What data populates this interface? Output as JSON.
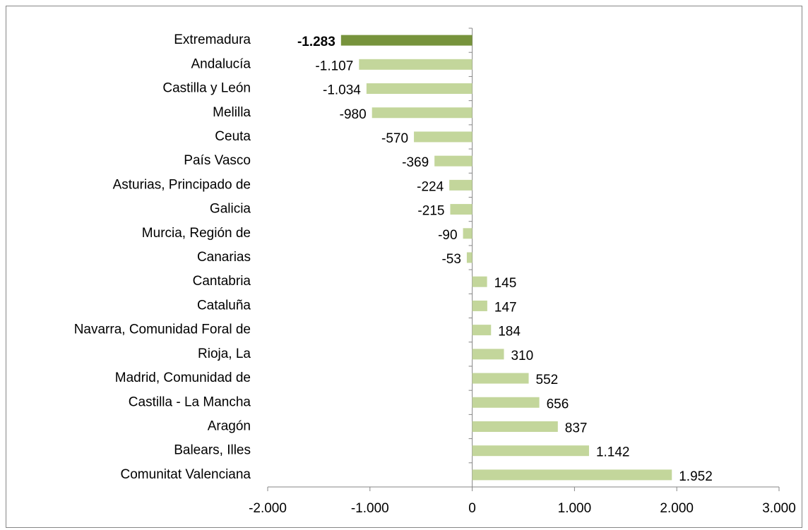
{
  "chart_data": {
    "type": "bar",
    "orientation": "horizontal",
    "categories": [
      "Extremadura",
      "Andalucía",
      "Castilla y León",
      "Melilla",
      "Ceuta",
      "País Vasco",
      "Asturias, Principado de",
      "Galicia",
      "Murcia, Región de",
      "Canarias",
      "Cantabria",
      "Cataluña",
      "Navarra, Comunidad Foral de",
      "Rioja, La",
      "Madrid, Comunidad de",
      "Castilla - La Mancha",
      "Aragón",
      "Balears, Illes",
      "Comunitat Valenciana"
    ],
    "values": [
      -1283,
      -1107,
      -1034,
      -980,
      -570,
      -369,
      -224,
      -215,
      -90,
      -53,
      145,
      147,
      184,
      310,
      552,
      656,
      837,
      1142,
      1952
    ],
    "value_labels": [
      "-1.283",
      "-1.107",
      "-1.034",
      "-980",
      "-570",
      "-369",
      "-224",
      "-215",
      "-90",
      "-53",
      "145",
      "147",
      "184",
      "310",
      "552",
      "656",
      "837",
      "1.142",
      "1.952"
    ],
    "colors": [
      "#77933c",
      "#c3d69b",
      "#c3d69b",
      "#c3d69b",
      "#c3d69b",
      "#c3d69b",
      "#c3d69b",
      "#c3d69b",
      "#c3d69b",
      "#c3d69b",
      "#c3d69b",
      "#c3d69b",
      "#c3d69b",
      "#c3d69b",
      "#c3d69b",
      "#c3d69b",
      "#c3d69b",
      "#c3d69b",
      "#c3d69b"
    ],
    "xlim": [
      -2000,
      3000
    ],
    "xticks": [
      {
        "value": -2000,
        "label": "-2.000"
      },
      {
        "value": -1000,
        "label": "-1.000"
      },
      0,
      {
        "value": 1000,
        "label": "1.000"
      },
      {
        "value": 2000,
        "label": "2.000"
      },
      {
        "value": 3000,
        "label": "3.000"
      }
    ],
    "grid": false
  }
}
